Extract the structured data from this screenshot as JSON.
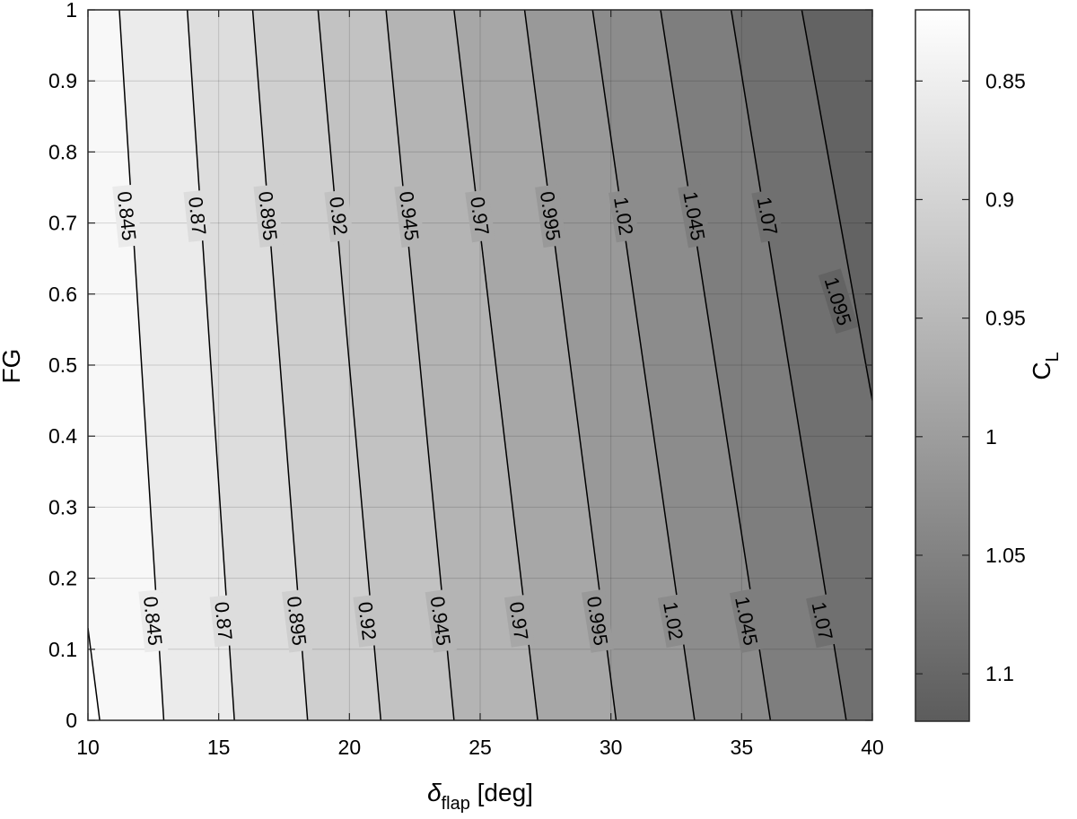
{
  "chart_data": {
    "type": "contour",
    "xlabel": {
      "symbol": "δ",
      "sub": "flap",
      "unit": " [deg]"
    },
    "ylabel": "FG",
    "xlim": [
      10,
      40
    ],
    "ylim": [
      0,
      1
    ],
    "xticks": [
      "10",
      "15",
      "20",
      "25",
      "30",
      "35",
      "40"
    ],
    "yticks": [
      "0",
      "0.1",
      "0.2",
      "0.3",
      "0.4",
      "0.5",
      "0.6",
      "0.7",
      "0.8",
      "0.9",
      "1"
    ],
    "grid": true,
    "colorbar": {
      "label": {
        "main": "C",
        "sub": "L"
      },
      "range": [
        0.82,
        1.12
      ],
      "ticks": [
        "0.85",
        "0.9",
        "0.95",
        "1",
        "1.05",
        "1.1"
      ],
      "reversed": true,
      "color_light": "#ffffff",
      "color_dark": "#5c5c5c"
    },
    "contour_levels": [
      "0.82",
      "0.845",
      "0.87",
      "0.895",
      "0.92",
      "0.945",
      "0.97",
      "0.995",
      "1.02",
      "1.045",
      "1.07",
      "1.095"
    ],
    "contour_lines": [
      {
        "level": "0.82",
        "points": [
          [
            10.0,
            0.13
          ],
          [
            10.45,
            0
          ]
        ]
      },
      {
        "level": "0.845",
        "points": [
          [
            11.2,
            1.0
          ],
          [
            12.9,
            0.0
          ]
        ]
      },
      {
        "level": "0.87",
        "points": [
          [
            13.8,
            1.0
          ],
          [
            15.6,
            0.0
          ]
        ]
      },
      {
        "level": "0.895",
        "points": [
          [
            16.3,
            1.0
          ],
          [
            18.4,
            0.0
          ]
        ]
      },
      {
        "level": "0.92",
        "points": [
          [
            18.8,
            1.0
          ],
          [
            21.2,
            0.0
          ]
        ]
      },
      {
        "level": "0.945",
        "points": [
          [
            21.4,
            1.0
          ],
          [
            24.0,
            0.0
          ]
        ]
      },
      {
        "level": "0.97",
        "points": [
          [
            24.0,
            1.0
          ],
          [
            27.2,
            0.0
          ]
        ]
      },
      {
        "level": "0.995",
        "points": [
          [
            26.7,
            1.0
          ],
          [
            30.2,
            0.0
          ]
        ]
      },
      {
        "level": "1.02",
        "points": [
          [
            29.3,
            1.0
          ],
          [
            33.2,
            0.0
          ]
        ]
      },
      {
        "level": "1.045",
        "points": [
          [
            31.9,
            1.0
          ],
          [
            36.1,
            0.0
          ]
        ]
      },
      {
        "level": "1.07",
        "points": [
          [
            34.6,
            1.0
          ],
          [
            39.0,
            0.0
          ]
        ]
      },
      {
        "level": "1.095",
        "points": [
          [
            37.3,
            1.0
          ],
          [
            40.0,
            0.45
          ]
        ]
      }
    ],
    "contour_labels": [
      {
        "text": "0.845",
        "x": 11.5,
        "y": 0.71,
        "angle": 84
      },
      {
        "text": "0.87",
        "x": 14.2,
        "y": 0.71,
        "angle": 84
      },
      {
        "text": "0.895",
        "x": 16.9,
        "y": 0.71,
        "angle": 84
      },
      {
        "text": "0.92",
        "x": 19.6,
        "y": 0.71,
        "angle": 83
      },
      {
        "text": "0.945",
        "x": 22.3,
        "y": 0.71,
        "angle": 83
      },
      {
        "text": "0.97",
        "x": 25.0,
        "y": 0.71,
        "angle": 82
      },
      {
        "text": "0.995",
        "x": 27.7,
        "y": 0.71,
        "angle": 82
      },
      {
        "text": "1.02",
        "x": 30.5,
        "y": 0.71,
        "angle": 81
      },
      {
        "text": "1.045",
        "x": 33.2,
        "y": 0.71,
        "angle": 80
      },
      {
        "text": "1.07",
        "x": 36.0,
        "y": 0.71,
        "angle": 79
      },
      {
        "text": "1.095",
        "x": 38.7,
        "y": 0.59,
        "angle": 73
      },
      {
        "text": "0.845",
        "x": 12.5,
        "y": 0.14,
        "angle": 84
      },
      {
        "text": "0.87",
        "x": 15.2,
        "y": 0.14,
        "angle": 84
      },
      {
        "text": "0.895",
        "x": 18.0,
        "y": 0.14,
        "angle": 83
      },
      {
        "text": "0.92",
        "x": 20.7,
        "y": 0.14,
        "angle": 83
      },
      {
        "text": "0.945",
        "x": 23.5,
        "y": 0.14,
        "angle": 82
      },
      {
        "text": "0.97",
        "x": 26.5,
        "y": 0.14,
        "angle": 82
      },
      {
        "text": "0.995",
        "x": 29.5,
        "y": 0.14,
        "angle": 81
      },
      {
        "text": "1.02",
        "x": 32.4,
        "y": 0.14,
        "angle": 80
      },
      {
        "text": "1.045",
        "x": 35.2,
        "y": 0.14,
        "angle": 79
      },
      {
        "text": "1.07",
        "x": 38.1,
        "y": 0.14,
        "angle": 78
      }
    ]
  }
}
